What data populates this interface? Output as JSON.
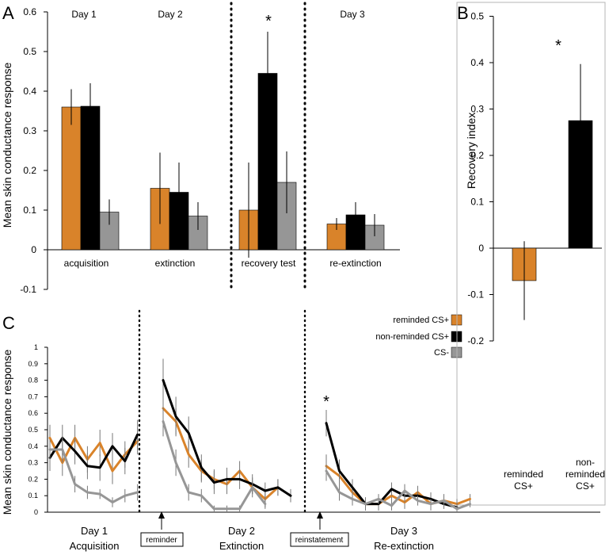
{
  "panels": {
    "a": "A",
    "b": "B",
    "c": "C"
  },
  "colors": {
    "reminded": "#D9832A",
    "nonreminded": "#000000",
    "csminus": "#969696"
  },
  "chart_data": [
    {
      "type": "bar",
      "panel": "A",
      "ylabel": "Mean skin conductance response",
      "ylim": [
        -0.1,
        0.6
      ],
      "yticks": [
        "0.6",
        "0.5",
        "0.4",
        "0.3",
        "0.2",
        "0.1",
        "0",
        "-0.1"
      ],
      "categories": [
        "acquisition",
        "extinction",
        "recovery test",
        "re-extinction"
      ],
      "day_labels": [
        "Day 1",
        "Day 2",
        "Day 3"
      ],
      "annotation": "*",
      "series": [
        {
          "values": [
            0.36,
            0.155,
            0.1,
            0.065
          ],
          "errors": [
            0.045,
            0.09,
            0.12,
            0.015
          ]
        },
        {
          "values": [
            0.362,
            0.145,
            0.445,
            0.088
          ],
          "errors": [
            0.058,
            0.075,
            0.105,
            0.032
          ]
        },
        {
          "values": [
            0.095,
            0.085,
            0.17,
            0.062
          ],
          "errors": [
            0.032,
            0.035,
            0.078,
            0.028
          ]
        }
      ]
    },
    {
      "type": "bar",
      "panel": "B",
      "ylabel": "Recovery index",
      "ylim": [
        -0.2,
        0.5
      ],
      "yticks": [
        "0.5",
        "0.4",
        "0.3",
        "0.2",
        "0.1",
        "0",
        "-0.1",
        "-0.2"
      ],
      "categories": [
        "reminded CS+",
        "non-reminded CS+"
      ],
      "cat_lines": [
        [
          "reminded",
          "CS+"
        ],
        [
          "non-",
          "reminded",
          "CS+"
        ]
      ],
      "values": [
        -0.07,
        0.275
      ],
      "errors": [
        0.085,
        0.122
      ],
      "annotation": "*"
    },
    {
      "type": "line",
      "panel": "C",
      "ylabel": "Mean skin conductance response",
      "ylim": [
        0,
        1
      ],
      "yticks": [
        "1",
        "0.9",
        "0.8",
        "0.7",
        "0.6",
        "0.5",
        "0.4",
        "0.3",
        "0.2",
        "0.1",
        "0"
      ],
      "legend": [
        "reminded CS+",
        "non-reminded CS+",
        "CS-"
      ],
      "legend_position": "top-right",
      "phase_lines": [
        [
          "Day 1",
          "Acquisition"
        ],
        [
          "Day 2",
          "Extinction"
        ],
        [
          "Day 3",
          "Re-extinction"
        ]
      ],
      "boxes": [
        "reminder",
        "reinstatement"
      ],
      "annotation": "*",
      "segments": [
        {
          "phase": "Day 1 Acquisition",
          "series": [
            {
              "values": [
                0.45,
                0.3,
                0.45,
                0.32,
                0.42,
                0.25,
                0.35,
                0.43
              ],
              "errors": [
                0.08,
                0.08,
                0.08,
                0.08,
                0.08,
                0.08,
                0.08,
                0.08
              ]
            },
            {
              "values": [
                0.33,
                0.45,
                0.37,
                0.28,
                0.27,
                0.4,
                0.31,
                0.47
              ],
              "errors": [
                0.08,
                0.08,
                0.08,
                0.08,
                0.08,
                0.08,
                0.08,
                0.09
              ]
            },
            {
              "values": [
                0.38,
                0.38,
                0.17,
                0.12,
                0.11,
                0.06,
                0.1,
                0.12
              ],
              "errors": [
                0.06,
                0.08,
                0.05,
                0.04,
                0.03,
                0.03,
                0.04,
                0.05
              ]
            }
          ]
        },
        {
          "phase": "Day 2 Extinction",
          "series": [
            {
              "values": [
                0.63,
                0.55,
                0.35,
                0.25,
                0.2,
                0.17,
                0.25,
                0.15,
                0.08,
                0.15
              ],
              "errors": [
                0.08,
                0.08,
                0.08,
                0.07,
                0.06,
                0.06,
                0.06,
                0.06,
                0.05,
                0.05
              ]
            },
            {
              "values": [
                0.8,
                0.58,
                0.48,
                0.27,
                0.18,
                0.2,
                0.2,
                0.17,
                0.13,
                0.15,
                0.1
              ],
              "errors": [
                0.13,
                0.12,
                0.1,
                0.08,
                0.07,
                0.07,
                0.06,
                0.06,
                0.05,
                0.05,
                0.04
              ]
            },
            {
              "values": [
                0.55,
                0.3,
                0.12,
                0.1,
                0.02,
                0.02,
                0.02,
                0.15,
                0.05
              ],
              "errors": [
                0.09,
                0.08,
                0.05,
                0.04,
                0.02,
                0.02,
                0.02,
                0.04,
                0.03
              ]
            }
          ]
        },
        {
          "phase": "Day 3 Re-extinction",
          "series": [
            {
              "values": [
                0.28,
                0.22,
                0.12,
                0.05,
                0.05,
                0.1,
                0.06,
                0.12,
                0.05,
                0.07,
                0.05,
                0.08
              ],
              "errors": [
                0.07,
                0.06,
                0.05,
                0.04,
                0.04,
                0.04,
                0.04,
                0.04,
                0.04,
                0.04,
                0.03,
                0.03
              ]
            },
            {
              "values": [
                0.54,
                0.25,
                0.15,
                0.05,
                0.05,
                0.14,
                0.1,
                0.1,
                0.08,
                0.05,
                0.03
              ],
              "errors": [
                0.08,
                0.07,
                0.05,
                0.04,
                0.04,
                0.04,
                0.04,
                0.04,
                0.04,
                0.03,
                0.03
              ]
            },
            {
              "values": [
                0.25,
                0.12,
                0.08,
                0.05,
                0.08,
                0.04,
                0.13,
                0.07,
                0.05,
                0.07,
                0.02,
                0.05
              ],
              "errors": [
                0.06,
                0.05,
                0.04,
                0.03,
                0.03,
                0.03,
                0.04,
                0.03,
                0.03,
                0.03,
                0.02,
                0.02
              ]
            }
          ]
        }
      ]
    }
  ]
}
